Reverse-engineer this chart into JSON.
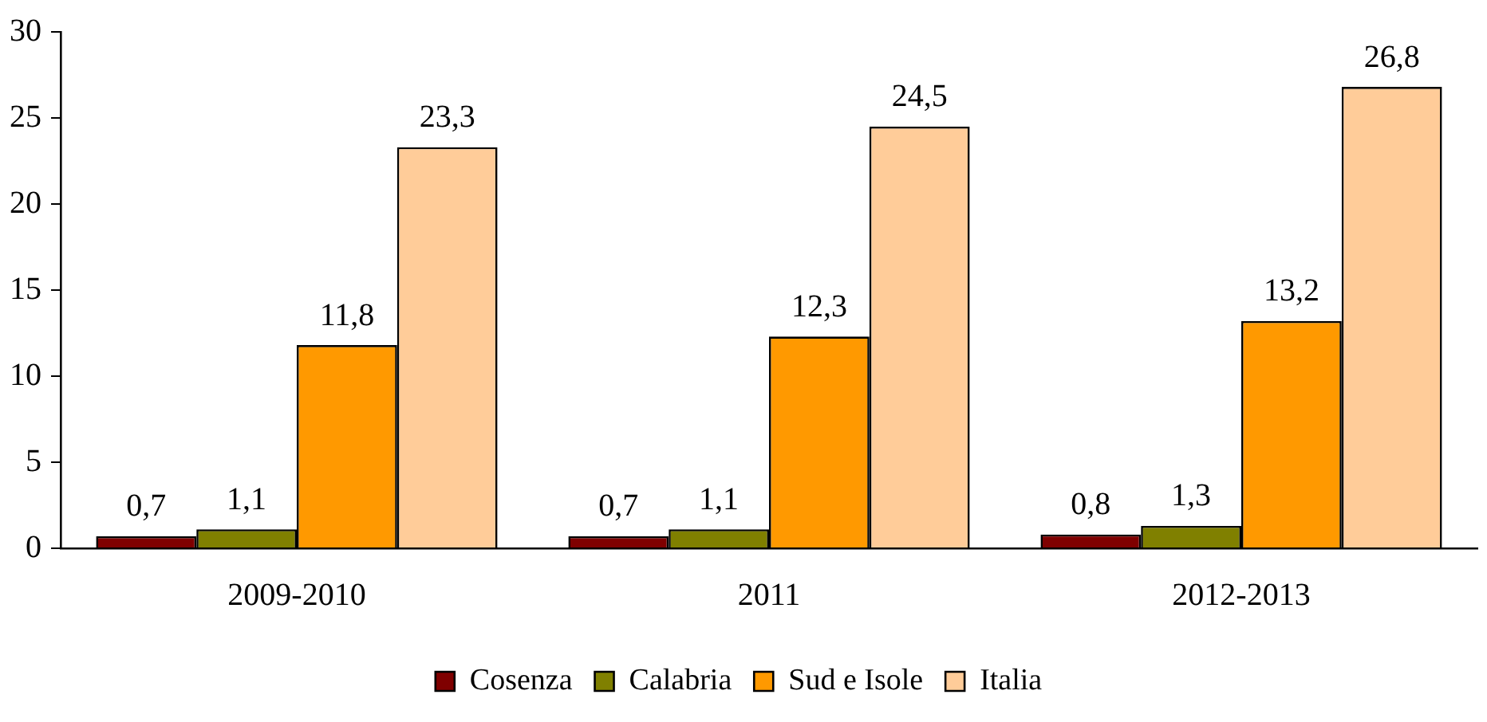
{
  "chart_data": {
    "type": "bar",
    "categories": [
      "2009-2010",
      "2011",
      "2012-2013"
    ],
    "series": [
      {
        "name": "Cosenza",
        "color": "#7f0000",
        "values": [
          0.7,
          0.7,
          0.8
        ],
        "value_labels": [
          "0,7",
          "0,7",
          "0,8"
        ]
      },
      {
        "name": "Calabria",
        "color": "#808000",
        "values": [
          1.1,
          1.1,
          1.3
        ],
        "value_labels": [
          "1,1",
          "1,1",
          "1,3"
        ]
      },
      {
        "name": "Sud e Isole",
        "color": "#ff9900",
        "values": [
          11.8,
          12.3,
          13.2
        ],
        "value_labels": [
          "11,8",
          "12,3",
          "13,2"
        ]
      },
      {
        "name": "Italia",
        "color": "#ffcc99",
        "values": [
          23.3,
          24.5,
          26.8
        ],
        "value_labels": [
          "23,3",
          "24,5",
          "26,8"
        ]
      }
    ],
    "ylim": [
      0,
      30
    ],
    "yticks": [
      0,
      5,
      10,
      15,
      20,
      25,
      30
    ],
    "grid": false,
    "legend": "bottom"
  }
}
